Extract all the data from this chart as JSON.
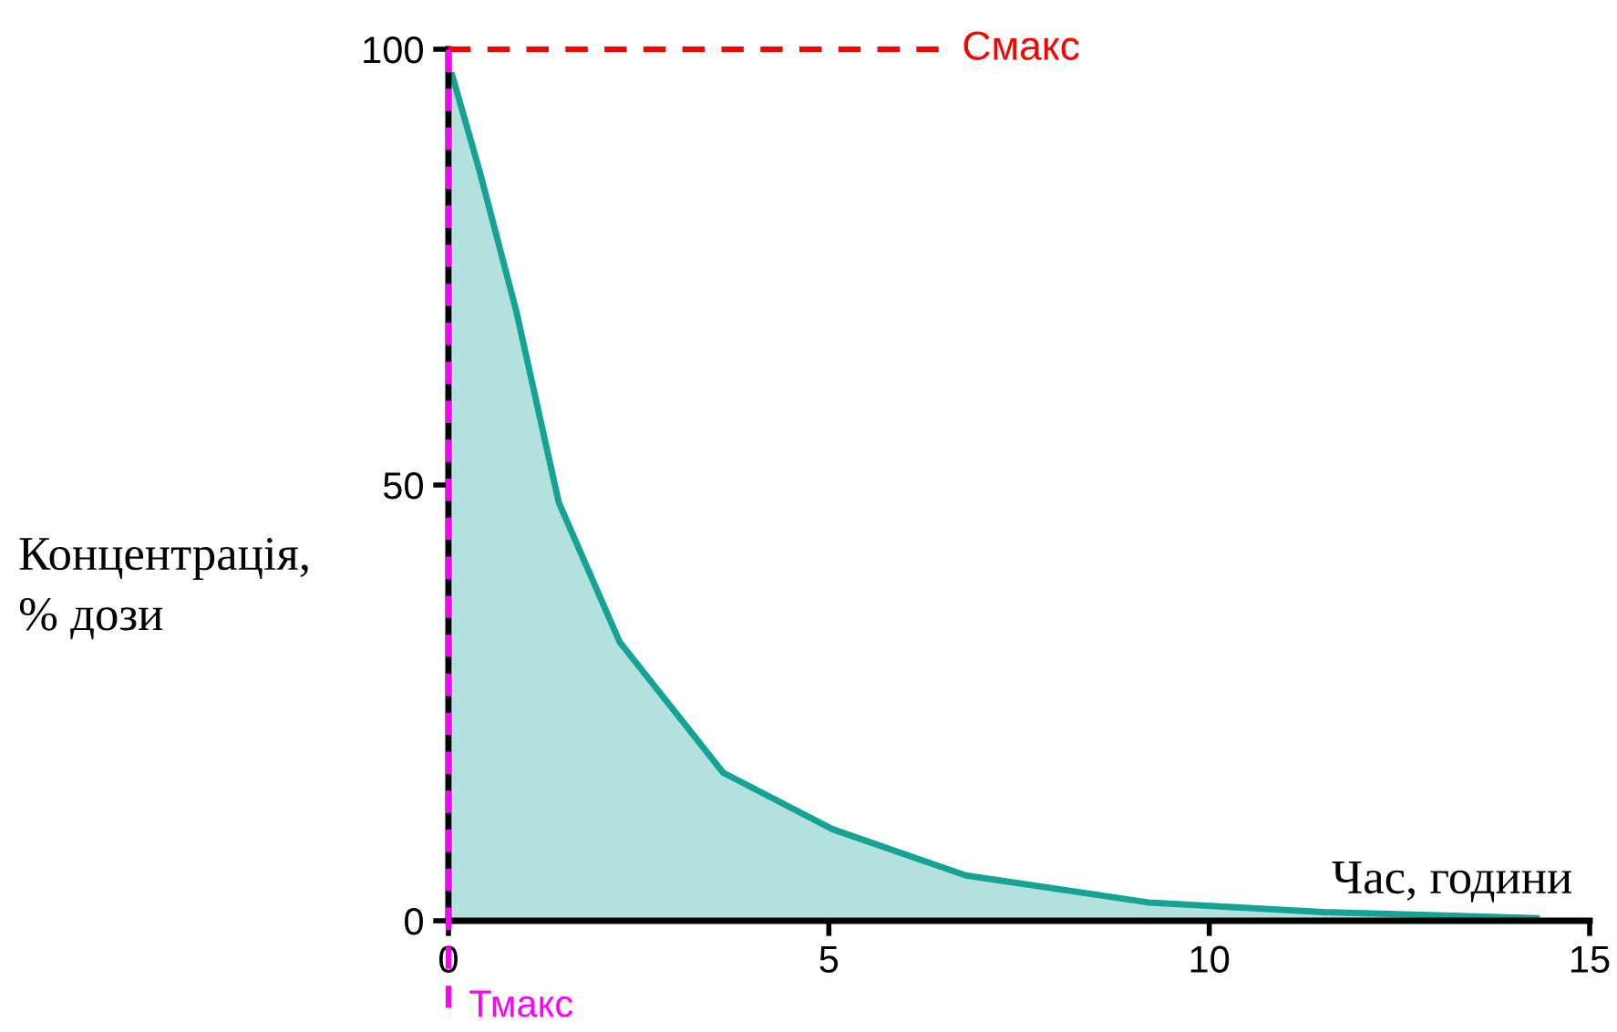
{
  "chart_data": {
    "type": "area",
    "xlabel": "Час, години",
    "ylabel": "Концентрація,\n% дози",
    "series": [
      {
        "color": "#14a394",
        "x": [
          0.05,
          0.41,
          0.89,
          1.45,
          2.25,
          3.61,
          5.05,
          6.8,
          9.2,
          11.5,
          14.3
        ],
        "values": [
          97,
          86,
          70,
          48,
          32,
          17,
          10.5,
          5.2,
          2.1,
          1,
          0.3
        ]
      }
    ],
    "xlim": [
      0,
      15
    ],
    "ylim": [
      0,
      100
    ],
    "xticks": [
      0,
      5,
      10,
      15
    ],
    "yticks": [
      0,
      50,
      100
    ],
    "grid": false,
    "ref_lines": [
      {
        "axis": "y",
        "value": 100,
        "label": "Смакс",
        "color": "#ff0000",
        "line_style": "dashed"
      },
      {
        "axis": "x",
        "value": 0,
        "label": "Тмакс",
        "color": "#ff00ff",
        "line_style": "dashed"
      }
    ]
  }
}
